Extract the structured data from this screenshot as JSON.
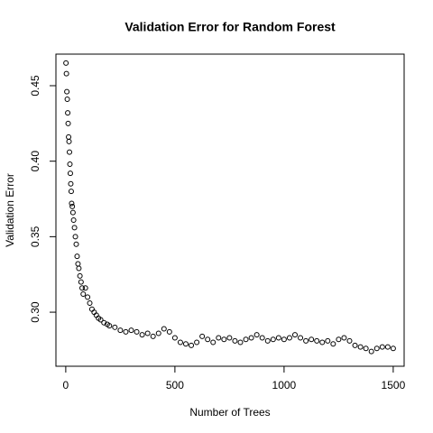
{
  "chart_data": {
    "type": "scatter",
    "title": "Validation Error for Random Forest",
    "xlabel": "Number of Trees",
    "ylabel": "Validation Error",
    "x": [
      1,
      3,
      5,
      7,
      9,
      11,
      13,
      15,
      17,
      19,
      21,
      23,
      25,
      27,
      30,
      33,
      36,
      40,
      44,
      48,
      52,
      56,
      60,
      65,
      70,
      75,
      80,
      90,
      100,
      110,
      120,
      130,
      140,
      150,
      160,
      175,
      190,
      200,
      225,
      250,
      275,
      300,
      325,
      350,
      375,
      400,
      425,
      450,
      475,
      500,
      525,
      550,
      575,
      600,
      625,
      650,
      675,
      700,
      725,
      750,
      775,
      800,
      825,
      850,
      875,
      900,
      925,
      950,
      975,
      1000,
      1025,
      1050,
      1075,
      1100,
      1125,
      1150,
      1175,
      1200,
      1225,
      1250,
      1275,
      1300,
      1325,
      1350,
      1375,
      1400,
      1425,
      1450,
      1475,
      1500
    ],
    "values": [
      0.465,
      0.458,
      0.446,
      0.441,
      0.432,
      0.425,
      0.416,
      0.413,
      0.406,
      0.398,
      0.392,
      0.385,
      0.38,
      0.372,
      0.37,
      0.366,
      0.361,
      0.356,
      0.35,
      0.345,
      0.337,
      0.332,
      0.329,
      0.324,
      0.32,
      0.316,
      0.312,
      0.316,
      0.31,
      0.306,
      0.302,
      0.3,
      0.298,
      0.296,
      0.295,
      0.293,
      0.292,
      0.291,
      0.29,
      0.288,
      0.287,
      0.288,
      0.287,
      0.285,
      0.286,
      0.284,
      0.286,
      0.289,
      0.287,
      0.283,
      0.28,
      0.279,
      0.278,
      0.28,
      0.284,
      0.282,
      0.28,
      0.283,
      0.282,
      0.283,
      0.281,
      0.28,
      0.282,
      0.283,
      0.285,
      0.283,
      0.281,
      0.282,
      0.283,
      0.282,
      0.283,
      0.285,
      0.283,
      0.281,
      0.282,
      0.281,
      0.28,
      0.281,
      0.279,
      0.282,
      0.283,
      0.281,
      0.278,
      0.277,
      0.276,
      0.274,
      0.276,
      0.277,
      0.277,
      0.276
    ],
    "color": "#000000",
    "xlim": [
      -45,
      1550
    ],
    "ylim": [
      0.2642,
      0.4709
    ],
    "xticks": [
      0,
      500,
      1000,
      1500
    ],
    "yticks": [
      {
        "value": 0.3,
        "label": "0.30"
      },
      0.35,
      {
        "value": 0.4,
        "label": "0.40"
      },
      0.45
    ]
  }
}
